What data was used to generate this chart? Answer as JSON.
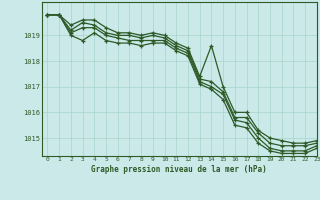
{
  "title": "Graphe pression niveau de la mer (hPa)",
  "background_color": "#cbe9e9",
  "grid_color": "#a8d4cc",
  "line_color": "#2d5a27",
  "marker_color": "#2d5a27",
  "xlim": [
    -0.5,
    23
  ],
  "ylim": [
    1014.3,
    1020.3
  ],
  "yticks": [
    1015,
    1016,
    1017,
    1018,
    1019
  ],
  "xticks": [
    0,
    1,
    2,
    3,
    4,
    5,
    6,
    7,
    8,
    9,
    10,
    11,
    12,
    13,
    14,
    15,
    16,
    17,
    18,
    19,
    20,
    21,
    22,
    23
  ],
  "series": [
    [
      1019.8,
      1019.8,
      1019.4,
      1019.6,
      1019.6,
      1019.3,
      1019.1,
      1019.1,
      1019.0,
      1019.1,
      1019.0,
      1018.7,
      1018.5,
      1017.4,
      1018.6,
      1017.0,
      1016.0,
      1016.0,
      1015.3,
      1015.0,
      1014.9,
      1014.8,
      1014.8,
      1014.9
    ],
    [
      1019.8,
      1019.8,
      1019.2,
      1019.5,
      1019.4,
      1019.1,
      1019.0,
      1019.0,
      1018.9,
      1019.0,
      1018.9,
      1018.6,
      1018.4,
      1017.3,
      1017.2,
      1016.8,
      1015.8,
      1015.8,
      1015.2,
      1014.8,
      1014.7,
      1014.7,
      1014.7,
      1014.8
    ],
    [
      1019.8,
      1019.8,
      1019.1,
      1019.3,
      1019.3,
      1019.0,
      1018.9,
      1018.8,
      1018.8,
      1018.8,
      1018.8,
      1018.5,
      1018.3,
      1017.2,
      1017.0,
      1016.7,
      1015.7,
      1015.6,
      1015.0,
      1014.6,
      1014.5,
      1014.5,
      1014.5,
      1014.7
    ],
    [
      1019.8,
      1019.8,
      1019.0,
      1018.8,
      1019.1,
      1018.8,
      1018.7,
      1018.7,
      1018.6,
      1018.7,
      1018.7,
      1018.4,
      1018.2,
      1017.1,
      1016.9,
      1016.5,
      1015.5,
      1015.4,
      1014.8,
      1014.5,
      1014.4,
      1014.4,
      1014.4,
      1014.6
    ]
  ]
}
